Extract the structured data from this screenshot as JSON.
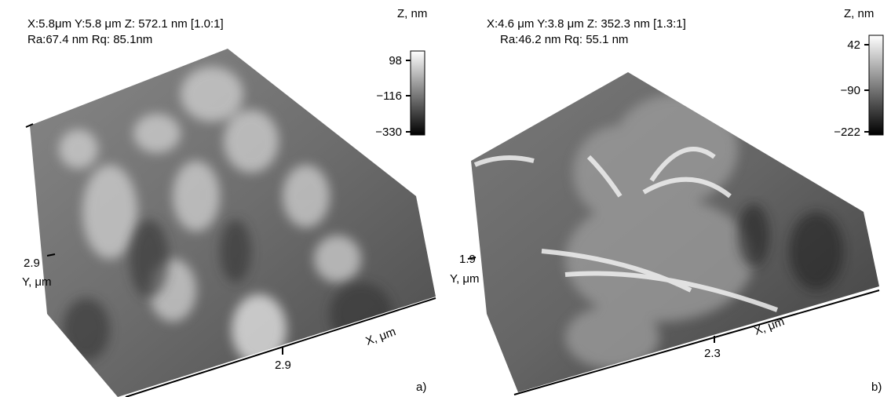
{
  "panels": [
    {
      "header_line1": "X:5.8μm Y:5.8 μm Z: 572.1 nm [1.0:1]",
      "header_line2": "Ra:67.4 nm Rq: 85.1nm",
      "colorbar": {
        "title": "Z, nm",
        "ticks": [
          "98",
          "−116",
          "−330"
        ]
      },
      "y_axis": {
        "tick": "2.9",
        "label": "Y, μm"
      },
      "x_axis": {
        "tick": "2.9",
        "label": "X, μm"
      },
      "tag": "a)"
    },
    {
      "header_line1": "X:4.6 μm Y:3.8 μm Z: 352.3 nm [1.3:1]",
      "header_line2": "Ra:46.2 nm Rq: 55.1 nm",
      "colorbar": {
        "title": "Z, nm",
        "ticks": [
          "42",
          "−90",
          "−222"
        ]
      },
      "y_axis": {
        "tick": "1.9",
        "label": "Y, μm"
      },
      "x_axis": {
        "tick": "2.3",
        "label": "X, μm"
      },
      "tag": "b)"
    }
  ]
}
